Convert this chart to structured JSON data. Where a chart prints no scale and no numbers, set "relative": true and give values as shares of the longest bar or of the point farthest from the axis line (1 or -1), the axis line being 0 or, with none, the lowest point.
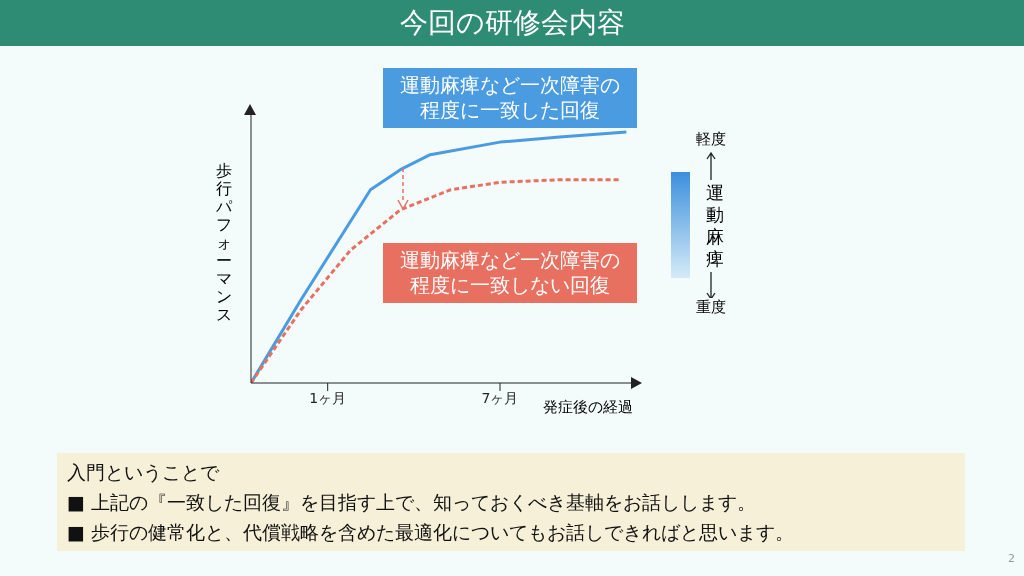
{
  "chart_data": {
    "type": "line",
    "title": "今回の研修会内容",
    "xlabel": "発症後の経過",
    "ylabel": "歩行パフォーマンス",
    "relative": true,
    "legend": false,
    "grid": false,
    "marker": "none",
    "xlim": [
      -1.67,
      11.7
    ],
    "xticks": [
      {
        "value": 1,
        "label": "1ヶ月"
      },
      {
        "value": 7,
        "label": "7ヶ月"
      }
    ],
    "series": [
      {
        "name": "運動麻痺など一次障害の程度に一致した回復",
        "color": "#4a9be0",
        "line_style": "solid",
        "x": [
          -1.67,
          0.06,
          2.49,
          3.53,
          4.57,
          7,
          9.08,
          11.4
        ],
        "values": [
          0,
          0.33,
          0.77,
          0.85,
          0.91,
          0.96,
          0.98,
          1
        ]
      },
      {
        "name": "運動麻痺など一次障害の程度に一致しない回復",
        "color": "#e87060",
        "line_style": "dashed",
        "x": [
          -1.67,
          0.06,
          1.8,
          3.53,
          5.27,
          7,
          9.08,
          11.23
        ],
        "values": [
          0,
          0.29,
          0.53,
          0.69,
          0.77,
          0.8,
          0.81,
          0.81
        ]
      }
    ],
    "annotations": [
      "軽度",
      "運動麻痺",
      "重度",
      "入門ということで",
      "■ 上記の『一致した回復』を目指す上で、知っておくべき基軸をお話しします。",
      "■ 歩行の健常化と、代償戦略を含めた最適化についてもお話しできればと思います。",
      "2"
    ]
  }
}
